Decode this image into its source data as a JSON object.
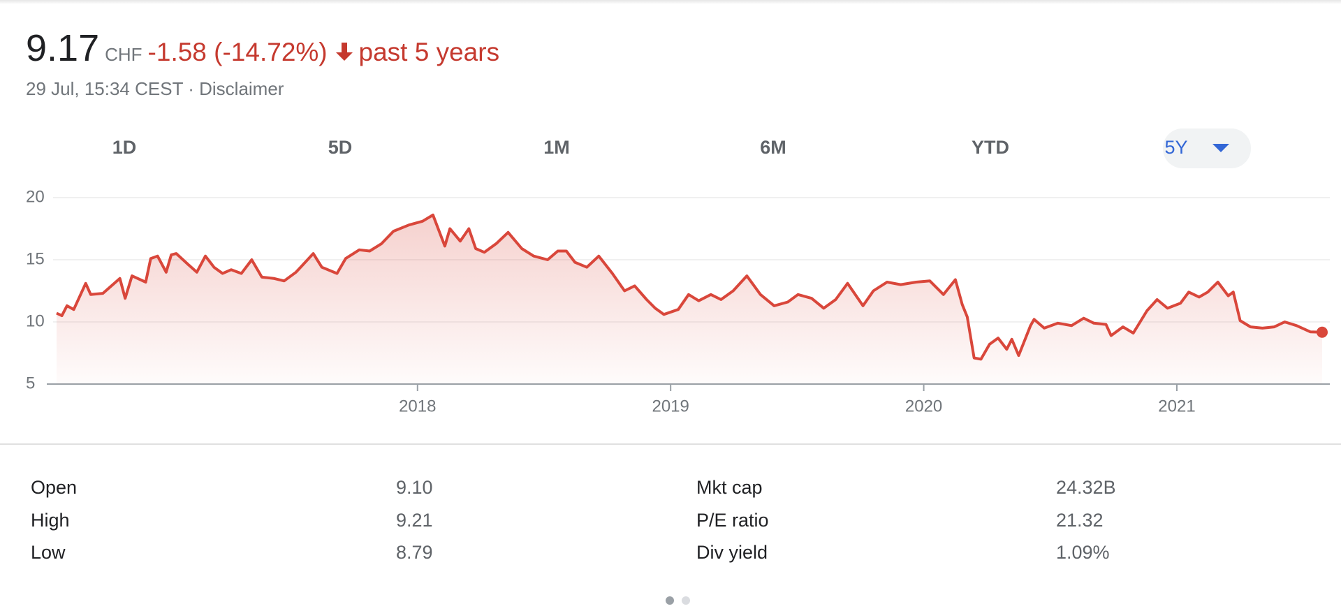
{
  "header": {
    "price": "9.17",
    "currency": "CHF",
    "change": "-1.58 (-14.72%)",
    "period": "past 5 years",
    "timestamp": "29 Jul, 15:34 CEST ·",
    "disclaimer": "Disclaimer"
  },
  "ranges": {
    "items": [
      "1D",
      "5D",
      "1M",
      "6M",
      "YTD",
      "5Y"
    ],
    "selected": 5
  },
  "chart_data": {
    "type": "area",
    "color": "#d9473b",
    "grid": true,
    "x": [
      2016.574,
      2016.595,
      2016.615,
      2016.642,
      2016.689,
      2016.709,
      2016.757,
      2016.824,
      2016.845,
      2016.872,
      2016.926,
      2016.946,
      2016.973,
      2017.007,
      2017.027,
      2017.047,
      2017.095,
      2017.128,
      2017.162,
      2017.196,
      2017.23,
      2017.264,
      2017.304,
      2017.345,
      2017.385,
      2017.432,
      2017.473,
      2017.52,
      2017.561,
      2017.588,
      2017.622,
      2017.682,
      2017.716,
      2017.77,
      2017.811,
      2017.858,
      2017.905,
      2017.966,
      2018.02,
      2018.061,
      2018.108,
      2018.128,
      2018.169,
      2018.203,
      2018.23,
      2018.264,
      2018.311,
      2018.358,
      2018.412,
      2018.459,
      2018.514,
      2018.554,
      2018.588,
      2018.622,
      2018.669,
      2018.716,
      2018.77,
      2018.818,
      2018.858,
      2018.905,
      2018.939,
      2018.973,
      2019.03,
      2019.071,
      2019.111,
      2019.159,
      2019.199,
      2019.247,
      2019.301,
      2019.355,
      2019.409,
      2019.463,
      2019.503,
      2019.557,
      2019.605,
      2019.652,
      2019.699,
      2019.76,
      2019.801,
      2019.855,
      2019.909,
      2019.97,
      2020.024,
      2020.078,
      2020.125,
      2020.152,
      2020.172,
      2020.199,
      2020.226,
      2020.26,
      2020.294,
      2020.328,
      2020.348,
      2020.375,
      2020.422,
      2020.436,
      2020.476,
      2020.53,
      2020.584,
      2020.632,
      2020.672,
      2020.72,
      2020.74,
      2020.787,
      2020.828,
      2020.882,
      2020.922,
      2020.963,
      2021.014,
      2021.047,
      2021.088,
      2021.122,
      2021.162,
      2021.203,
      2021.223,
      2021.25,
      2021.291,
      2021.338,
      2021.385,
      2021.426,
      2021.473,
      2021.527,
      2021.574
    ],
    "values": [
      10.7,
      10.5,
      11.3,
      11.0,
      13.1,
      12.2,
      12.3,
      13.5,
      11.9,
      13.7,
      13.2,
      15.1,
      15.3,
      14.0,
      15.4,
      15.5,
      14.6,
      14.0,
      15.3,
      14.4,
      13.9,
      14.2,
      13.9,
      15.0,
      13.6,
      13.5,
      13.3,
      14.0,
      14.9,
      15.5,
      14.4,
      13.9,
      15.1,
      15.8,
      15.7,
      16.3,
      17.3,
      17.8,
      18.1,
      18.6,
      16.1,
      17.5,
      16.5,
      17.5,
      15.9,
      15.6,
      16.3,
      17.2,
      15.9,
      15.3,
      15.0,
      15.7,
      15.7,
      14.8,
      14.4,
      15.3,
      13.9,
      12.5,
      12.9,
      11.8,
      11.1,
      10.6,
      11.0,
      12.2,
      11.7,
      12.2,
      11.8,
      12.5,
      13.7,
      12.2,
      11.3,
      11.6,
      12.2,
      11.9,
      11.1,
      11.8,
      13.1,
      11.3,
      12.5,
      13.2,
      13.0,
      13.2,
      13.3,
      12.2,
      13.4,
      11.4,
      10.4,
      7.1,
      7.0,
      8.2,
      8.7,
      7.8,
      8.6,
      7.3,
      9.7,
      10.2,
      9.5,
      9.9,
      9.7,
      10.3,
      9.9,
      9.8,
      8.9,
      9.6,
      9.1,
      10.9,
      11.8,
      11.1,
      11.5,
      12.4,
      12.0,
      12.4,
      13.2,
      12.1,
      12.4,
      10.1,
      9.6,
      9.5,
      9.6,
      10.0,
      9.7,
      9.2,
      9.17
    ],
    "xlim": [
      2016.574,
      2021.574
    ],
    "xticks": [
      2018,
      2019,
      2020,
      2021
    ],
    "ylim": [
      5,
      20
    ],
    "yticks": [
      5,
      10,
      15,
      20
    ]
  },
  "stats": {
    "rows": [
      [
        "Open",
        "9.10",
        "Mkt cap",
        "24.32B"
      ],
      [
        "High",
        "9.21",
        "P/E ratio",
        "21.32"
      ],
      [
        "Low",
        "8.79",
        "Div yield",
        "1.09%"
      ]
    ]
  }
}
